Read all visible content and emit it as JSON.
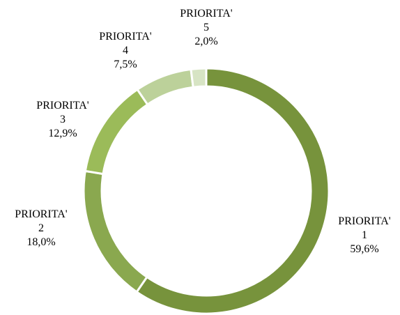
{
  "chart_data": {
    "type": "donut",
    "categories": [
      "PRIORITA' 1",
      "PRIORITA' 2",
      "PRIORITA' 3",
      "PRIORITA' 4",
      "PRIORITA' 5"
    ],
    "values": [
      59.6,
      18.0,
      12.9,
      7.5,
      2.0
    ],
    "value_labels": [
      "59,6%",
      "18,0%",
      "12,9%",
      "7,5%",
      "2,0%"
    ],
    "colors": [
      "#77933c",
      "#8aa84f",
      "#9bbb59",
      "#bcd19a",
      "#d7e4c4"
    ]
  }
}
